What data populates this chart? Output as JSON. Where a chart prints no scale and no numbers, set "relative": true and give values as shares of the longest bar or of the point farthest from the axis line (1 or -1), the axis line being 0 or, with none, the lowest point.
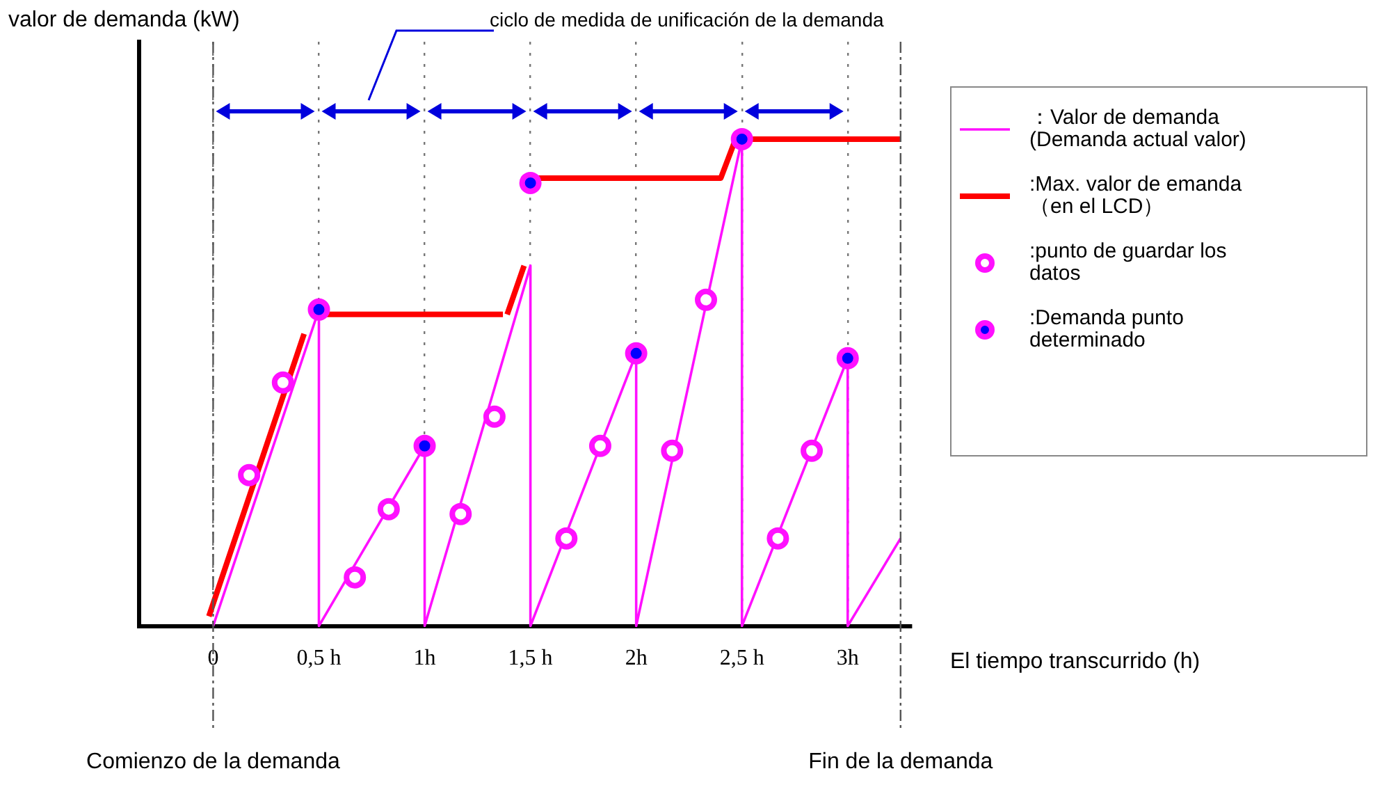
{
  "chart_data": {
    "type": "line",
    "relative": true,
    "ylabel": "valor de demanda (kW)",
    "xlabel": "El tiempo transcurrido (h)",
    "annotations": [
      "ciclo de medida de unificación de la demanda"
    ],
    "xlim": [
      -0.35,
      3.3
    ],
    "xticks": [
      0,
      {
        "value": 0.5,
        "label": "0,5 h"
      },
      {
        "value": 1,
        "label": "1h"
      },
      {
        "value": 1.5,
        "label": "1,5 h"
      },
      {
        "value": 2,
        "label": "2h"
      },
      {
        "value": 2.5,
        "label": "2,5 h"
      },
      {
        "value": 3,
        "label": "3h"
      }
    ],
    "grid": "x",
    "legend": "right",
    "marker": "none",
    "ref_lines": [
      {
        "axis": "x",
        "value": 0,
        "label": "Comienzo de la demanda",
        "color": "#555555",
        "line_style": "dashed"
      },
      {
        "axis": "x",
        "value": 3.25,
        "label": "Fin de la demanda",
        "color": "#555555",
        "line_style": "dashed"
      }
    ],
    "series": [
      {
        "name": "：Valor de demanda\n(Demanda actual valor)",
        "color": "#ff10ff",
        "x": [
          0,
          0.5,
          0.5,
          1,
          1,
          1.5,
          1.5,
          2,
          2,
          2.5,
          2.5,
          3,
          3,
          3.25
        ],
        "values": [
          0,
          0.65,
          0,
          0.37,
          0,
          0.74,
          0,
          0.56,
          0,
          1,
          0,
          0.55,
          0,
          0.18
        ]
      },
      {
        "name": ":Max. valor de emanda\n（en el LCD）",
        "color": "#ff0000",
        "x": [
          -0.02,
          0.43,
          0.47,
          0.53,
          1.37,
          1.38,
          1.39,
          1.47,
          1.5,
          1.53,
          2.4,
          2.47,
          3.25
        ],
        "values": [
          0.02,
          0.6,
          null,
          0.64,
          0.64,
          null,
          0.64,
          0.74,
          null,
          0.92,
          0.92,
          1,
          1
        ]
      },
      {
        "name": ":punto de guardar los\ndatos",
        "type": "scatter",
        "marker": "circle",
        "color": "#ff10ff",
        "x": [
          0.17,
          0.33,
          0.67,
          0.83,
          1.17,
          1.33,
          1.67,
          1.83,
          2.17,
          2.33,
          2.67,
          2.83
        ],
        "values": [
          0.31,
          0.5,
          0.1,
          0.24,
          0.23,
          0.43,
          0.18,
          0.37,
          0.36,
          0.67,
          0.18,
          0.36
        ]
      },
      {
        "name": ":Demanda punto\ndeterminado",
        "type": "scatter",
        "marker": "circle",
        "color": "#0000ff",
        "x": [
          0.5,
          1,
          1.5,
          2,
          2.5,
          3
        ],
        "values": [
          0.65,
          0.37,
          0.91,
          0.56,
          1,
          0.55
        ]
      }
    ]
  }
}
